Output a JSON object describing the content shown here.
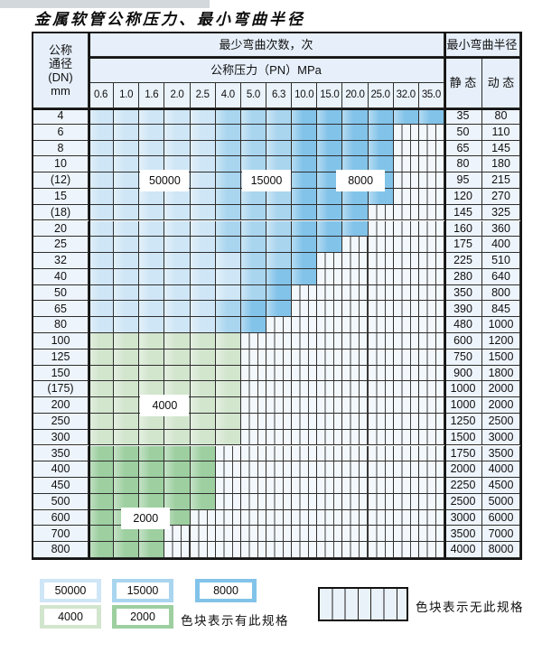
{
  "page": {
    "title": "金属软管公称压力、最小弯曲半径"
  },
  "table": {
    "header": {
      "dn_label_lines": [
        "公称",
        "通径",
        "(DN)",
        "mm"
      ],
      "bend_times_label": "最少弯曲次数，次",
      "pressure_label": "公称压力（PN）MPa",
      "radius_label": "最小弯曲半径",
      "static_label": "静 态",
      "dynamic_label": "动 态",
      "pressure_columns": [
        "0.6",
        "1.0",
        "1.6",
        "2.0",
        "2.5",
        "4.0",
        "5.0",
        "6.3",
        "10.0",
        "15.0",
        "20.0",
        "25.0",
        "32.0",
        "35.0"
      ]
    },
    "rows": [
      {
        "dn": "4",
        "static": "35",
        "dynamic": "80",
        "palette": "blue",
        "light_end": 5,
        "med_end": 8,
        "color_end": 14
      },
      {
        "dn": "6",
        "static": "50",
        "dynamic": "110",
        "palette": "blue",
        "light_end": 5,
        "med_end": 8,
        "color_end": 12
      },
      {
        "dn": "8",
        "static": "65",
        "dynamic": "145",
        "palette": "blue",
        "light_end": 5,
        "med_end": 8,
        "color_end": 12
      },
      {
        "dn": "10",
        "static": "80",
        "dynamic": "180",
        "palette": "blue",
        "light_end": 5,
        "med_end": 8,
        "color_end": 12
      },
      {
        "dn": "(12)",
        "static": "95",
        "dynamic": "215",
        "palette": "blue",
        "light_end": 5,
        "med_end": 8,
        "color_end": 12
      },
      {
        "dn": "15",
        "static": "120",
        "dynamic": "270",
        "palette": "blue",
        "light_end": 5,
        "med_end": 8,
        "color_end": 12
      },
      {
        "dn": "(18)",
        "static": "145",
        "dynamic": "325",
        "palette": "blue",
        "light_end": 5,
        "med_end": 8,
        "color_end": 11
      },
      {
        "dn": "20",
        "static": "160",
        "dynamic": "360",
        "palette": "blue",
        "light_end": 5,
        "med_end": 8,
        "color_end": 11
      },
      {
        "dn": "25",
        "static": "175",
        "dynamic": "400",
        "palette": "blue",
        "light_end": 5,
        "med_end": 8,
        "color_end": 10
      },
      {
        "dn": "32",
        "static": "225",
        "dynamic": "510",
        "palette": "blue",
        "light_end": 6,
        "med_end": 8,
        "color_end": 9
      },
      {
        "dn": "40",
        "static": "280",
        "dynamic": "640",
        "palette": "blue",
        "light_end": 6,
        "med_end": 7,
        "color_end": 9
      },
      {
        "dn": "50",
        "static": "350",
        "dynamic": "800",
        "palette": "blue",
        "light_end": 6,
        "med_end": 7,
        "color_end": 8
      },
      {
        "dn": "65",
        "static": "390",
        "dynamic": "845",
        "palette": "blue",
        "light_end": 5,
        "med_end": 6,
        "color_end": 8
      },
      {
        "dn": "80",
        "static": "480",
        "dynamic": "1000",
        "palette": "blue",
        "light_end": 5,
        "med_end": 6,
        "color_end": 7
      },
      {
        "dn": "100",
        "static": "600",
        "dynamic": "1200",
        "palette": "green-light",
        "color_end": 6
      },
      {
        "dn": "125",
        "static": "750",
        "dynamic": "1500",
        "palette": "green-light",
        "color_end": 6
      },
      {
        "dn": "150",
        "static": "900",
        "dynamic": "1800",
        "palette": "green-light",
        "color_end": 6
      },
      {
        "dn": "(175)",
        "static": "1000",
        "dynamic": "2000",
        "palette": "green-light",
        "color_end": 6
      },
      {
        "dn": "200",
        "static": "1000",
        "dynamic": "2000",
        "palette": "green-light",
        "color_end": 6
      },
      {
        "dn": "250",
        "static": "1250",
        "dynamic": "2500",
        "palette": "green-light",
        "color_end": 6
      },
      {
        "dn": "300",
        "static": "1500",
        "dynamic": "3000",
        "palette": "green-light",
        "color_end": 6
      },
      {
        "dn": "350",
        "static": "1750",
        "dynamic": "3500",
        "palette": "green-dark",
        "color_end": 5
      },
      {
        "dn": "400",
        "static": "2000",
        "dynamic": "4000",
        "palette": "green-dark",
        "color_end": 5
      },
      {
        "dn": "450",
        "static": "2250",
        "dynamic": "4500",
        "palette": "green-dark",
        "color_end": 5
      },
      {
        "dn": "500",
        "static": "2500",
        "dynamic": "5000",
        "palette": "green-dark",
        "color_end": 5
      },
      {
        "dn": "600",
        "static": "3000",
        "dynamic": "6000",
        "palette": "green-dark",
        "color_end": 4
      },
      {
        "dn": "700",
        "static": "3500",
        "dynamic": "7000",
        "palette": "green-dark",
        "color_end": 3
      },
      {
        "dn": "800",
        "static": "4000",
        "dynamic": "8000",
        "palette": "green-dark",
        "color_end": 3
      }
    ],
    "value_flags": [
      {
        "text": "50000",
        "row_index": 4,
        "col_index": 2
      },
      {
        "text": "15000",
        "row_index": 4,
        "col_index": 6
      },
      {
        "text": "8000",
        "row_index": 4,
        "col_index": 9.7
      },
      {
        "text": "4000",
        "row_index": 18,
        "col_index": 2
      },
      {
        "text": "2000",
        "row_index": 25,
        "col_index": 1.25
      }
    ]
  },
  "legend": {
    "swatches": [
      {
        "label": "50000",
        "color": "#cfe6f6"
      },
      {
        "label": "15000",
        "color": "#a9d5ef"
      },
      {
        "label": "8000",
        "color": "#82c3e9"
      },
      {
        "label": "4000",
        "color": "#d2e5cd"
      },
      {
        "label": "2000",
        "color": "#9dcfa0"
      }
    ],
    "has_spec_text": "色块表示有此规格",
    "no_spec_text": "色块表示无此规格"
  },
  "colors": {
    "blue_50000": "#cfe6f6",
    "blue_15000": "#a9d5ef",
    "blue_8000": "#82c3e9",
    "green_4000": "#d2e5cd",
    "green_2000": "#9dcfa0",
    "grid_line": "#2e2e2e"
  }
}
